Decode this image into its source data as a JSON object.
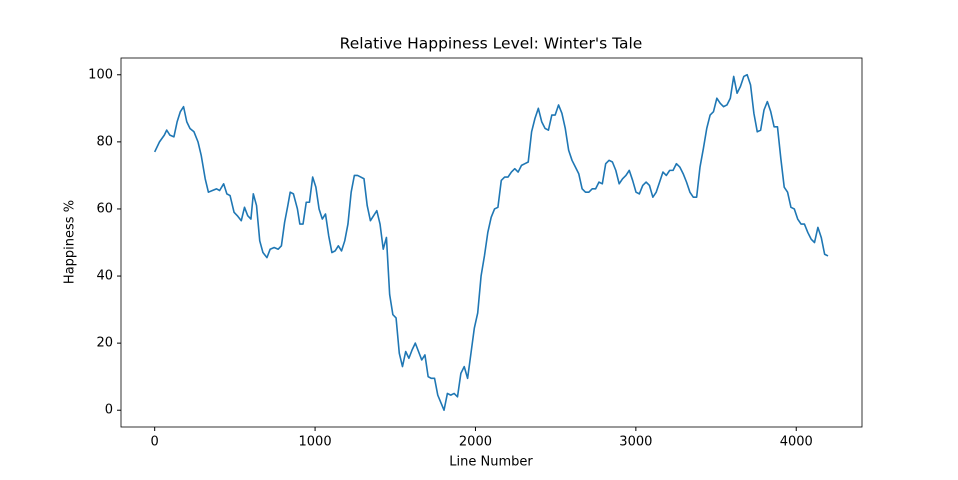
{
  "chart_data": {
    "type": "line",
    "title": "Relative Happiness Level: Winter's Tale",
    "x_label": "Line Number",
    "y_label": "Happiness %",
    "xlim": [
      -210,
      4410
    ],
    "ylim": [
      -5,
      105
    ],
    "xticks": [
      0,
      1000,
      2000,
      3000,
      4000
    ],
    "yticks": [
      0,
      20,
      40,
      60,
      80,
      100
    ],
    "grid": false,
    "x": [
      0,
      30,
      60,
      75,
      95,
      120,
      140,
      160,
      180,
      200,
      220,
      245,
      270,
      290,
      315,
      335,
      360,
      385,
      405,
      430,
      450,
      470,
      495,
      515,
      540,
      560,
      580,
      600,
      615,
      635,
      655,
      675,
      700,
      720,
      745,
      770,
      790,
      810,
      830,
      845,
      865,
      890,
      905,
      925,
      945,
      965,
      985,
      1005,
      1025,
      1045,
      1065,
      1085,
      1105,
      1125,
      1145,
      1165,
      1185,
      1205,
      1225,
      1245,
      1265,
      1285,
      1305,
      1325,
      1345,
      1365,
      1385,
      1405,
      1425,
      1445,
      1465,
      1485,
      1505,
      1525,
      1545,
      1565,
      1585,
      1605,
      1625,
      1645,
      1665,
      1685,
      1705,
      1725,
      1745,
      1765,
      1804,
      1825,
      1846,
      1867,
      1888,
      1909,
      1930,
      1951,
      1972,
      1993,
      2014,
      2035,
      2056,
      2077,
      2098,
      2119,
      2140,
      2161,
      2182,
      2203,
      2224,
      2245,
      2266,
      2287,
      2308,
      2329,
      2350,
      2371,
      2392,
      2413,
      2434,
      2455,
      2476,
      2497,
      2518,
      2539,
      2560,
      2581,
      2602,
      2623,
      2644,
      2665,
      2686,
      2707,
      2728,
      2749,
      2770,
      2791,
      2812,
      2833,
      2854,
      2875,
      2896,
      2917,
      2938,
      2959,
      2980,
      3001,
      3022,
      3043,
      3064,
      3085,
      3106,
      3127,
      3148,
      3169,
      3190,
      3211,
      3232,
      3253,
      3274,
      3295,
      3316,
      3337,
      3358,
      3379,
      3400,
      3421,
      3442,
      3463,
      3484,
      3505,
      3526,
      3547,
      3568,
      3589,
      3610,
      3631,
      3652,
      3673,
      3694,
      3715,
      3736,
      3757,
      3778,
      3799,
      3820,
      3841,
      3862,
      3883,
      3904,
      3925,
      3946,
      3967,
      3988,
      4009,
      4030,
      4051,
      4072,
      4093,
      4114,
      4135,
      4156,
      4177,
      4198
    ],
    "series": [
      {
        "color": "#1f77b4",
        "values": [
          77,
          80,
          82,
          83.5,
          82,
          81.5,
          86,
          89,
          90.5,
          86,
          84,
          83,
          80,
          76,
          69,
          65,
          65.5,
          66,
          65.5,
          67.5,
          64.5,
          64,
          59,
          58,
          56.5,
          60.5,
          58,
          57,
          64.5,
          61,
          50.5,
          47,
          45.5,
          48,
          48.5,
          48,
          49,
          56,
          61,
          65,
          64.5,
          60,
          55.5,
          55.5,
          62,
          62,
          69.5,
          66.5,
          60,
          57,
          58.5,
          52,
          47,
          47.5,
          49,
          47.5,
          50.5,
          55.5,
          65,
          70,
          70,
          69.5,
          69,
          61,
          56.5,
          58,
          59.5,
          55.5,
          48,
          51.5,
          34.5,
          28.5,
          27.5,
          17,
          13,
          17.5,
          15.5,
          18,
          20,
          17.5,
          15,
          16.5,
          10,
          9.5,
          9.5,
          4.5,
          0,
          5,
          4.5,
          5,
          4,
          11,
          13,
          9.5,
          17,
          24.5,
          29,
          40,
          46,
          53,
          57.5,
          60,
          60.5,
          68.5,
          69.5,
          69.5,
          71,
          72,
          71,
          73,
          73.5,
          74,
          83,
          87,
          90,
          86,
          84,
          83.5,
          88,
          88,
          91,
          88.5,
          84,
          77.5,
          74.5,
          72.5,
          70.5,
          66,
          65,
          65,
          66,
          66,
          68,
          67.5,
          73.5,
          74.5,
          74,
          71.5,
          67.5,
          69,
          70,
          71.5,
          68.5,
          65,
          64.5,
          67,
          68,
          67,
          63.5,
          65,
          68,
          71,
          70,
          71.5,
          71.5,
          73.5,
          72.5,
          70.5,
          68,
          65,
          63.5,
          63.5,
          72.5,
          78,
          84,
          88,
          89,
          93,
          91.5,
          90.5,
          91,
          93,
          99.5,
          94.5,
          96.5,
          99.5,
          100,
          97,
          88.5,
          83,
          83.5,
          89.5,
          92,
          89,
          84.5,
          84.5,
          75,
          66.5,
          65,
          60.5,
          60,
          57,
          55.5,
          55.5,
          53,
          51,
          50,
          54.5,
          51.5,
          46.5,
          46
        ]
      }
    ]
  }
}
